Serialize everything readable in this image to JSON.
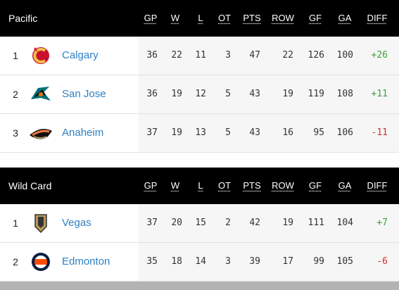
{
  "sections": [
    {
      "title": "Pacific",
      "columns": [
        "GP",
        "W",
        "L",
        "OT",
        "PTS",
        "ROW",
        "GF",
        "GA",
        "DIFF"
      ],
      "rows": [
        {
          "rank": 1,
          "team": "Calgary",
          "stats": [
            36,
            22,
            11,
            3,
            47,
            22,
            126,
            100,
            "+26"
          ]
        },
        {
          "rank": 2,
          "team": "San Jose",
          "stats": [
            36,
            19,
            12,
            5,
            43,
            19,
            119,
            108,
            "+11"
          ]
        },
        {
          "rank": 3,
          "team": "Anaheim",
          "stats": [
            37,
            19,
            13,
            5,
            43,
            16,
            95,
            106,
            "-11"
          ]
        }
      ]
    },
    {
      "title": "Wild Card",
      "columns": [
        "GP",
        "W",
        "L",
        "OT",
        "PTS",
        "ROW",
        "GF",
        "GA",
        "DIFF"
      ],
      "rows": [
        {
          "rank": 1,
          "team": "Vegas",
          "stats": [
            37,
            20,
            15,
            2,
            42,
            19,
            111,
            104,
            "+7"
          ]
        },
        {
          "rank": 2,
          "team": "Edmonton",
          "stats": [
            35,
            18,
            14,
            3,
            39,
            17,
            99,
            105,
            "-6"
          ]
        }
      ]
    }
  ]
}
